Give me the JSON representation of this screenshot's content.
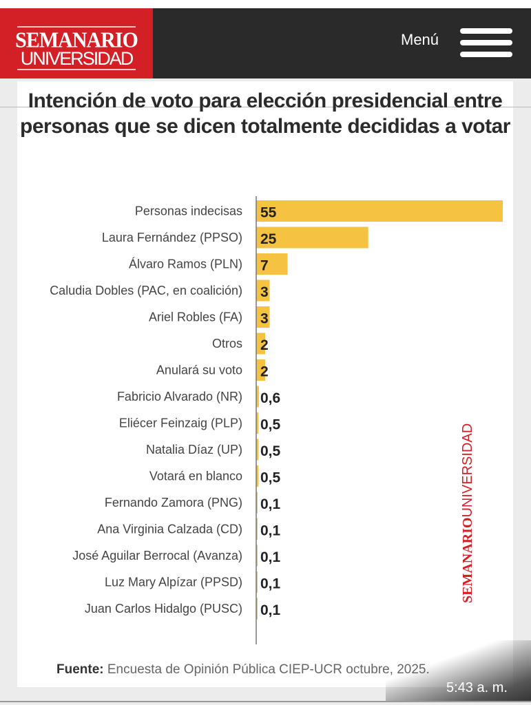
{
  "header": {
    "logo_top": "SEMANARIO",
    "logo_bottom": "UNIVERSIDAD",
    "menu_label": "Menú"
  },
  "chart_data": {
    "type": "bar",
    "orientation": "horizontal",
    "title": "Intención de voto para elección presidencial entre personas que se dicen totalmente decididas a votar",
    "categories": [
      "Personas indecisas",
      "Laura Fernández (PPSO)",
      "Álvaro Ramos (PLN)",
      "Caludia Dobles (PAC, en coalición)",
      "Ariel Robles (FA)",
      "Otros",
      "Anulará su voto",
      "Fabricio Alvarado (NR)",
      "Eliécer Feinzaig (PLP)",
      "Natalia Díaz (UP)",
      "Votará en blanco",
      "Fernando Zamora (PNG)",
      "Ana Virginia Calzada (CD)",
      "José Aguilar Berrocal (Avanza)",
      "Luz Mary Alpízar (PPSD)",
      "Juan Carlos Hidalgo (PUSC)"
    ],
    "values": [
      55,
      25,
      7,
      3,
      3,
      2,
      2,
      0.6,
      0.5,
      0.5,
      0.5,
      0.1,
      0.1,
      0.1,
      0.1,
      0.1
    ],
    "value_labels": [
      "55",
      "25",
      "7",
      "3",
      "3",
      "2",
      "2",
      "0,6",
      "0,5",
      "0,5",
      "0,5",
      "0,1",
      "0,1",
      "0,1",
      "0,1",
      "0,1"
    ],
    "bar_color": "#f5c242",
    "xlim": [
      0,
      55
    ]
  },
  "watermark": {
    "top": "SEMANARIO",
    "bottom": "UNIVERSIDAD"
  },
  "source": {
    "label": "Fuente:",
    "text": " Encuesta de Opinión Pública CIEP-UCR octubre, 2025."
  },
  "status": {
    "time": "5:43 a. m."
  }
}
